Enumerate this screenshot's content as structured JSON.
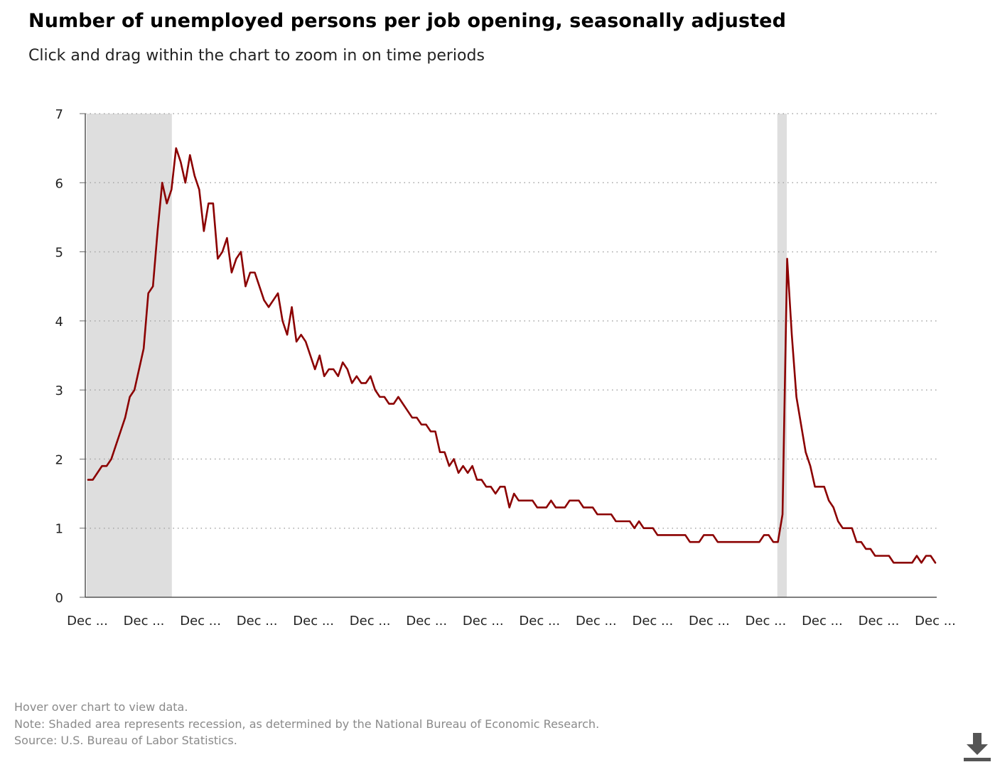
{
  "header": {
    "title": "Number of unemployed persons per job opening, seasonally adjusted",
    "subtitle": "Click and drag within the chart to zoom in on time periods"
  },
  "footer": {
    "hover_note": "Hover over chart to view data.",
    "recession_note": "Note: Shaded area represents recession, as determined by the National Bureau of Economic Research.",
    "source": "Source: U.S. Bureau of Labor Statistics."
  },
  "controls": {
    "download_icon": "download-icon"
  },
  "chart_data": {
    "type": "line",
    "title": "Number of unemployed persons per job opening, seasonally adjusted",
    "xlabel": "",
    "ylabel": "",
    "ylim": [
      0,
      7
    ],
    "yticks": [
      0,
      1,
      2,
      3,
      4,
      5,
      6,
      7
    ],
    "xtick_labels": [
      "Dec ...",
      "Dec ...",
      "Dec ...",
      "Dec ...",
      "Dec ...",
      "Dec ...",
      "Dec ...",
      "Dec ...",
      "Dec ...",
      "Dec ...",
      "Dec ...",
      "Dec ...",
      "Dec ...",
      "Dec ...",
      "Dec ...",
      "Dec ..."
    ],
    "x_start": "2007-12",
    "x_end": "2022-12",
    "grid": "horizontal dotted",
    "recessions": [
      {
        "start": "2007-12",
        "end": "2009-06"
      },
      {
        "start": "2020-02",
        "end": "2020-04"
      }
    ],
    "series": [
      {
        "color": "#8b0000",
        "values": [
          1.7,
          1.7,
          1.8,
          1.9,
          1.9,
          2.0,
          2.2,
          2.4,
          2.6,
          2.9,
          3.0,
          3.3,
          3.6,
          4.4,
          4.5,
          5.3,
          6.0,
          5.7,
          5.9,
          6.5,
          6.3,
          6.0,
          6.4,
          6.1,
          5.9,
          5.3,
          5.7,
          5.7,
          4.9,
          5.0,
          5.2,
          4.7,
          4.9,
          5.0,
          4.5,
          4.7,
          4.7,
          4.5,
          4.3,
          4.2,
          4.3,
          4.4,
          4.0,
          3.8,
          4.2,
          3.7,
          3.8,
          3.7,
          3.5,
          3.3,
          3.5,
          3.2,
          3.3,
          3.3,
          3.2,
          3.4,
          3.3,
          3.1,
          3.2,
          3.1,
          3.1,
          3.2,
          3.0,
          2.9,
          2.9,
          2.8,
          2.8,
          2.9,
          2.8,
          2.7,
          2.6,
          2.6,
          2.5,
          2.5,
          2.4,
          2.4,
          2.1,
          2.1,
          1.9,
          2.0,
          1.8,
          1.9,
          1.8,
          1.9,
          1.7,
          1.7,
          1.6,
          1.6,
          1.5,
          1.6,
          1.6,
          1.3,
          1.5,
          1.4,
          1.4,
          1.4,
          1.4,
          1.3,
          1.3,
          1.3,
          1.4,
          1.3,
          1.3,
          1.3,
          1.4,
          1.4,
          1.4,
          1.3,
          1.3,
          1.3,
          1.2,
          1.2,
          1.2,
          1.2,
          1.1,
          1.1,
          1.1,
          1.1,
          1.0,
          1.1,
          1.0,
          1.0,
          1.0,
          0.9,
          0.9,
          0.9,
          0.9,
          0.9,
          0.9,
          0.9,
          0.8,
          0.8,
          0.8,
          0.9,
          0.9,
          0.9,
          0.8,
          0.8,
          0.8,
          0.8,
          0.8,
          0.8,
          0.8,
          0.8,
          0.8,
          0.8,
          0.9,
          0.9,
          0.8,
          0.8,
          1.2,
          4.9,
          3.8,
          2.9,
          2.5,
          2.1,
          1.9,
          1.6,
          1.6,
          1.6,
          1.4,
          1.3,
          1.1,
          1.0,
          1.0,
          1.0,
          0.8,
          0.8,
          0.7,
          0.7,
          0.6,
          0.6,
          0.6,
          0.6,
          0.5,
          0.5,
          0.5,
          0.5,
          0.5,
          0.6,
          0.5,
          0.6,
          0.6,
          0.5
        ]
      }
    ]
  }
}
